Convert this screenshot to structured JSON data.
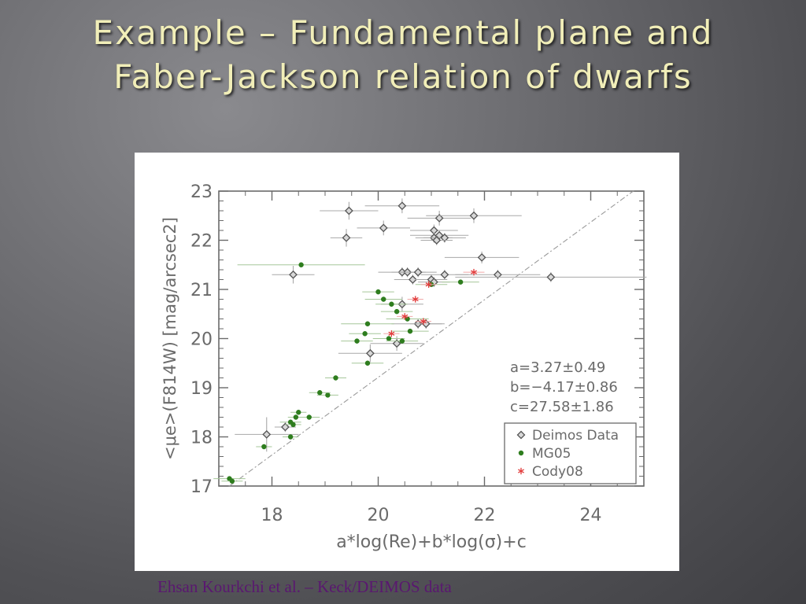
{
  "slide": {
    "title_line1": "Example – Fundamental plane and",
    "title_line2": "Faber-Jackson relation of dwarfs",
    "caption": "Ehsan Kourkchi et al. – Keck/DEIMOS data"
  },
  "chart_data": {
    "type": "scatter",
    "title": "",
    "xlabel": "a*log(Re)+b*log(σ)+c",
    "ylabel": "<μe>(F814W) [mag/arcsec2]",
    "xlim": [
      17,
      25
    ],
    "ylim": [
      17,
      23
    ],
    "x_ticks": [
      "18",
      "20",
      "22",
      "24"
    ],
    "y_ticks": [
      "17",
      "18",
      "19",
      "20",
      "21",
      "22",
      "23"
    ],
    "grid": false,
    "legend_position": "lower-right",
    "annotations": [
      "a=3.27±0.49",
      "b=−4.17±0.86",
      "c=27.58±1.86"
    ],
    "fit_line": {
      "x": [
        17.2,
        24.8
      ],
      "y": [
        17.0,
        23.0
      ],
      "style": "dash-dot",
      "color": "#9a9a9a"
    },
    "series": [
      {
        "name": "Deimos Data",
        "marker": "diamond",
        "color": "#555555",
        "points": [
          {
            "x": 19.45,
            "y": 22.6,
            "xerr": 0.55,
            "yerr": 0.18
          },
          {
            "x": 20.45,
            "y": 22.7,
            "xerr": 0.7,
            "yerr": 0.15
          },
          {
            "x": 21.15,
            "y": 22.45,
            "xerr": 0.6,
            "yerr": 0.15
          },
          {
            "x": 21.8,
            "y": 22.5,
            "xerr": 0.9,
            "yerr": 0.15
          },
          {
            "x": 20.1,
            "y": 22.25,
            "xerr": 0.5,
            "yerr": 0.15
          },
          {
            "x": 19.4,
            "y": 22.05,
            "xerr": 0.3,
            "yerr": 0.18
          },
          {
            "x": 21.05,
            "y": 22.2,
            "xerr": 0.45,
            "yerr": 0.12
          },
          {
            "x": 21.15,
            "y": 22.1,
            "xerr": 0.55,
            "yerr": 0.1
          },
          {
            "x": 21.05,
            "y": 22.05,
            "xerr": 0.35,
            "yerr": 0.1
          },
          {
            "x": 21.25,
            "y": 22.05,
            "xerr": 0.4,
            "yerr": 0.1
          },
          {
            "x": 21.1,
            "y": 22.0,
            "xerr": 0.3,
            "yerr": 0.1
          },
          {
            "x": 21.95,
            "y": 21.65,
            "xerr": 0.7,
            "yerr": 0.12
          },
          {
            "x": 18.4,
            "y": 21.3,
            "xerr": 0.4,
            "yerr": 0.18
          },
          {
            "x": 20.45,
            "y": 21.35,
            "xerr": 0.45,
            "yerr": 0.1
          },
          {
            "x": 20.55,
            "y": 21.35,
            "xerr": 0.3,
            "yerr": 0.1
          },
          {
            "x": 20.75,
            "y": 21.35,
            "xerr": 0.35,
            "yerr": 0.1
          },
          {
            "x": 21.25,
            "y": 21.3,
            "xerr": 0.45,
            "yerr": 0.1
          },
          {
            "x": 20.65,
            "y": 21.2,
            "xerr": 0.35,
            "yerr": 0.1
          },
          {
            "x": 21.0,
            "y": 21.2,
            "xerr": 0.3,
            "yerr": 0.1
          },
          {
            "x": 21.05,
            "y": 21.15,
            "xerr": 0.3,
            "yerr": 0.1
          },
          {
            "x": 22.25,
            "y": 21.3,
            "xerr": 0.8,
            "yerr": 0.1
          },
          {
            "x": 23.25,
            "y": 21.25,
            "xerr": 1.8,
            "yerr": 0.1
          },
          {
            "x": 20.45,
            "y": 20.7,
            "xerr": 0.4,
            "yerr": 0.15
          },
          {
            "x": 20.75,
            "y": 20.3,
            "xerr": 0.5,
            "yerr": 0.1
          },
          {
            "x": 20.9,
            "y": 20.3,
            "xerr": 0.3,
            "yerr": 0.1
          },
          {
            "x": 20.35,
            "y": 19.9,
            "xerr": 0.5,
            "yerr": 0.15
          },
          {
            "x": 19.85,
            "y": 19.7,
            "xerr": 0.6,
            "yerr": 0.18
          },
          {
            "x": 18.25,
            "y": 18.2,
            "xerr": 0.2,
            "yerr": 0.1
          },
          {
            "x": 17.9,
            "y": 18.05,
            "xerr": 0.6,
            "yerr": 0.35
          }
        ]
      },
      {
        "name": "MG05",
        "marker": "circle",
        "color": "#2e7d1e",
        "points": [
          {
            "x": 18.55,
            "y": 21.5,
            "xerr": 1.2,
            "yerr": 0.05
          },
          {
            "x": 20.0,
            "y": 20.95,
            "xerr": 0.3,
            "yerr": 0.05
          },
          {
            "x": 20.1,
            "y": 20.8,
            "xerr": 0.35,
            "yerr": 0.05
          },
          {
            "x": 20.25,
            "y": 20.7,
            "xerr": 0.3,
            "yerr": 0.05
          },
          {
            "x": 20.35,
            "y": 20.55,
            "xerr": 0.3,
            "yerr": 0.05
          },
          {
            "x": 20.55,
            "y": 20.4,
            "xerr": 0.4,
            "yerr": 0.05
          },
          {
            "x": 20.6,
            "y": 20.15,
            "xerr": 0.35,
            "yerr": 0.05
          },
          {
            "x": 19.8,
            "y": 20.3,
            "xerr": 0.5,
            "yerr": 0.05
          },
          {
            "x": 19.75,
            "y": 20.1,
            "xerr": 0.3,
            "yerr": 0.05
          },
          {
            "x": 20.2,
            "y": 20.0,
            "xerr": 0.3,
            "yerr": 0.05
          },
          {
            "x": 20.45,
            "y": 19.95,
            "xerr": 0.3,
            "yerr": 0.05
          },
          {
            "x": 19.6,
            "y": 19.95,
            "xerr": 0.3,
            "yerr": 0.05
          },
          {
            "x": 19.8,
            "y": 19.5,
            "xerr": 0.3,
            "yerr": 0.05
          },
          {
            "x": 21.0,
            "y": 21.1,
            "xerr": 0.3,
            "yerr": 0.05
          },
          {
            "x": 21.55,
            "y": 21.15,
            "xerr": 0.35,
            "yerr": 0.05
          },
          {
            "x": 19.2,
            "y": 19.2,
            "xerr": 0.2,
            "yerr": 0.05
          },
          {
            "x": 19.05,
            "y": 18.85,
            "xerr": 0.2,
            "yerr": 0.05
          },
          {
            "x": 18.9,
            "y": 18.9,
            "xerr": 0.2,
            "yerr": 0.05
          },
          {
            "x": 18.7,
            "y": 18.4,
            "xerr": 0.2,
            "yerr": 0.05
          },
          {
            "x": 18.5,
            "y": 18.5,
            "xerr": 0.15,
            "yerr": 0.05
          },
          {
            "x": 18.45,
            "y": 18.4,
            "xerr": 0.15,
            "yerr": 0.05
          },
          {
            "x": 18.35,
            "y": 18.3,
            "xerr": 0.2,
            "yerr": 0.05
          },
          {
            "x": 18.4,
            "y": 18.25,
            "xerr": 0.15,
            "yerr": 0.05
          },
          {
            "x": 18.35,
            "y": 18.0,
            "xerr": 0.15,
            "yerr": 0.05
          },
          {
            "x": 17.85,
            "y": 17.8,
            "xerr": 0.15,
            "yerr": 0.05
          },
          {
            "x": 17.2,
            "y": 17.15,
            "xerr": 0.3,
            "yerr": 0.05
          },
          {
            "x": 17.25,
            "y": 17.1,
            "xerr": 0.2,
            "yerr": 0.05
          }
        ]
      },
      {
        "name": "Cody08",
        "marker": "asterisk",
        "color": "#e23b3b",
        "points": [
          {
            "x": 21.8,
            "y": 21.35,
            "xerr": 0.2,
            "yerr": 0.05
          },
          {
            "x": 20.95,
            "y": 21.1,
            "xerr": 0.15,
            "yerr": 0.05
          },
          {
            "x": 20.7,
            "y": 20.8,
            "xerr": 0.15,
            "yerr": 0.05
          },
          {
            "x": 20.5,
            "y": 20.45,
            "xerr": 0.15,
            "yerr": 0.05
          },
          {
            "x": 20.85,
            "y": 20.35,
            "xerr": 0.15,
            "yerr": 0.05
          },
          {
            "x": 20.25,
            "y": 20.1,
            "xerr": 0.15,
            "yerr": 0.05
          }
        ]
      }
    ]
  }
}
